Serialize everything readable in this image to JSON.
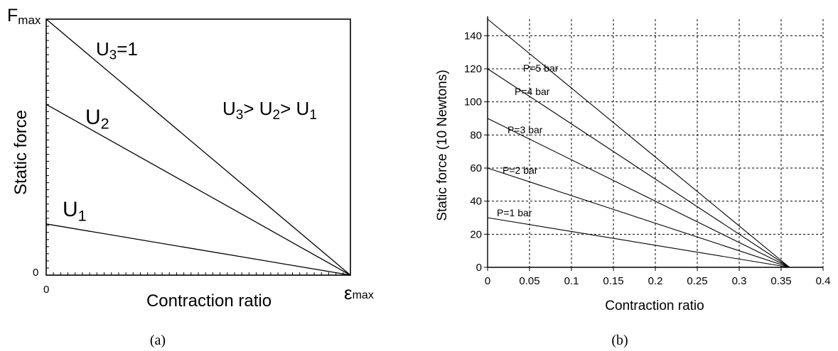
{
  "chart_data": [
    {
      "type": "line",
      "xlabel": "Contraction ratio",
      "ylabel": "Static force",
      "y_top_label": "F",
      "y_top_sub": "max",
      "y_zero_label": "0",
      "x_zero_label": "0",
      "x_end_label": "ε",
      "x_end_sub": "max",
      "xlim": [
        0,
        1
      ],
      "ylim": [
        0,
        1
      ],
      "series": [
        {
          "label": "U",
          "sub": "3",
          "suffix": "=1",
          "x": [
            0,
            1
          ],
          "y": [
            1.0,
            0
          ]
        },
        {
          "label": "U",
          "sub": "2",
          "suffix": "",
          "x": [
            0,
            1
          ],
          "y": [
            0.667,
            0
          ]
        },
        {
          "label": "U",
          "sub": "1",
          "suffix": "",
          "x": [
            0,
            1
          ],
          "y": [
            0.2,
            0
          ]
        }
      ],
      "annotation": {
        "parts": [
          "U",
          "3",
          "> U",
          "2",
          "> U",
          "1"
        ]
      },
      "caption": "(a)"
    },
    {
      "type": "line",
      "xlabel": "Contraction ratio",
      "ylabel": "Static force (10 Newtons)",
      "xlim": [
        0,
        0.4
      ],
      "ylim": [
        0,
        150
      ],
      "grid": true,
      "xticks": [
        "0",
        "0.05",
        "0.1",
        "0.15",
        "0.2",
        "0.25",
        "0.3",
        "0.35",
        "0.4"
      ],
      "yticks": [
        "0",
        "20",
        "40",
        "60",
        "80",
        "100",
        "120",
        "140"
      ],
      "series": [
        {
          "name": "P=1 bar",
          "x": [
            0,
            0.36
          ],
          "y": [
            30,
            0
          ]
        },
        {
          "name": "P=2 bar",
          "x": [
            0,
            0.36
          ],
          "y": [
            60,
            0
          ]
        },
        {
          "name": "P=3 bar",
          "x": [
            0,
            0.36
          ],
          "y": [
            90,
            0
          ]
        },
        {
          "name": "P=4 bar",
          "x": [
            0,
            0.36
          ],
          "y": [
            120,
            0
          ]
        },
        {
          "name": "P=5 bar",
          "x": [
            0,
            0.36
          ],
          "y": [
            150,
            0
          ]
        }
      ],
      "caption": "(b)"
    }
  ]
}
